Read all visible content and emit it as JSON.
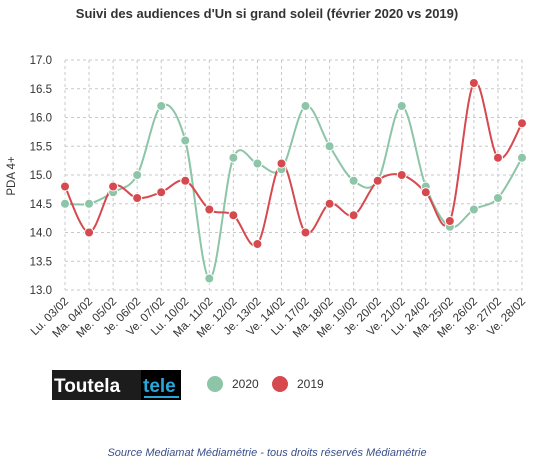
{
  "chart_data": {
    "type": "line",
    "title": "Suivi des audiences d'Un si grand soleil (février 2020 vs 2019)",
    "ylabel": "PDA 4+",
    "xlabel": "",
    "ylim": [
      13.0,
      17.0
    ],
    "yticks": [
      13.0,
      13.5,
      14.0,
      14.5,
      15.0,
      15.5,
      16.0,
      16.5,
      17.0
    ],
    "ytick_labels": [
      "13.0",
      "13.5",
      "14.0",
      "14.5",
      "15.0",
      "15.5",
      "16.0",
      "16.5",
      "17.0"
    ],
    "grid": true,
    "legend_position": "bottom",
    "categories": [
      "Lu. 03/02",
      "Ma. 04/02",
      "Me. 05/02",
      "Je. 06/02",
      "Ve. 07/02",
      "Lu. 10/02",
      "Ma. 11/02",
      "Me. 12/02",
      "Je. 13/02",
      "Ve. 14/02",
      "Lu. 17/02",
      "Ma. 18/02",
      "Me. 19/02",
      "Je. 20/02",
      "Ve. 21/02",
      "Lu. 24/02",
      "Ma. 25/02",
      "Me. 26/02",
      "Je. 27/02",
      "Ve. 28/02"
    ],
    "series": [
      {
        "name": "2020",
        "color": "#8cc5a7",
        "values": [
          14.5,
          14.5,
          14.7,
          15.0,
          16.2,
          15.6,
          13.2,
          15.3,
          15.2,
          15.1,
          16.2,
          15.5,
          14.9,
          14.9,
          16.2,
          14.8,
          14.1,
          14.4,
          14.6,
          15.3
        ]
      },
      {
        "name": "2019",
        "color": "#d64a4f",
        "values": [
          14.8,
          14.0,
          14.8,
          14.6,
          14.7,
          14.9,
          14.4,
          14.3,
          13.8,
          15.2,
          14.0,
          14.5,
          14.3,
          14.9,
          15.0,
          14.7,
          14.2,
          16.6,
          15.3,
          15.9
        ]
      }
    ]
  },
  "branding": {
    "logo_part1": "Toutela",
    "logo_part2": "tele"
  },
  "source": "Source Mediamat Médiamétrie - tous droits réservés Médiamétrie"
}
